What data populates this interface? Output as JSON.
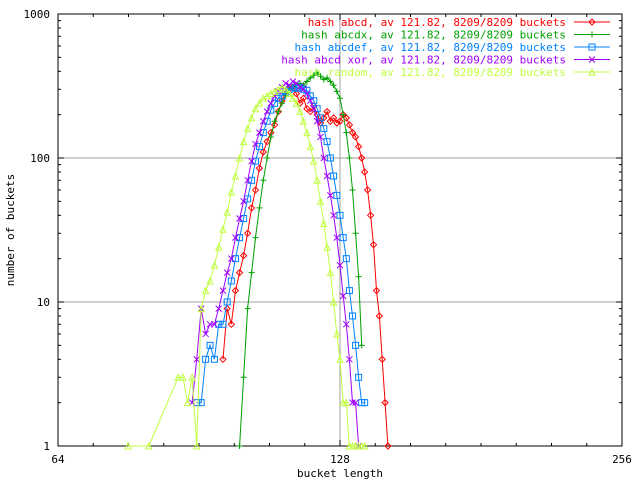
{
  "chart_data": {
    "type": "line",
    "title": "",
    "xlabel": "bucket length",
    "ylabel": "number of buckets",
    "xscale": "log2",
    "yscale": "log10",
    "xlim": [
      64,
      256
    ],
    "ylim": [
      1,
      1000
    ],
    "x_ticks": [
      64,
      128,
      256
    ],
    "x_tick_labels": [
      "64",
      "128",
      "256"
    ],
    "y_ticks": [
      1,
      10,
      100,
      1000
    ],
    "y_tick_labels": [
      "1",
      "10",
      "100",
      "1000"
    ],
    "grid": true,
    "legend_position": "top-right",
    "series": [
      {
        "name": "hash abcd, av 121.82, 8209/8209 buckets",
        "color": "#ff0000",
        "marker": "diamond",
        "points": [
          [
            96,
            4
          ],
          [
            97,
            9
          ],
          [
            98,
            7
          ],
          [
            99,
            12
          ],
          [
            100,
            16
          ],
          [
            101,
            21
          ],
          [
            102,
            30
          ],
          [
            103,
            45
          ],
          [
            104,
            60
          ],
          [
            105,
            85
          ],
          [
            106,
            110
          ],
          [
            107,
            130
          ],
          [
            108,
            150
          ],
          [
            109,
            170
          ],
          [
            110,
            210
          ],
          [
            111,
            250
          ],
          [
            112,
            280
          ],
          [
            113,
            300
          ],
          [
            114,
            310
          ],
          [
            115,
            280
          ],
          [
            116,
            240
          ],
          [
            117,
            260
          ],
          [
            118,
            220
          ],
          [
            119,
            210
          ],
          [
            120,
            230
          ],
          [
            121,
            200
          ],
          [
            122,
            175
          ],
          [
            123,
            190
          ],
          [
            124,
            210
          ],
          [
            125,
            180
          ],
          [
            126,
            190
          ],
          [
            127,
            175
          ],
          [
            128,
            180
          ],
          [
            129,
            200
          ],
          [
            130,
            190
          ],
          [
            131,
            170
          ],
          [
            132,
            150
          ],
          [
            133,
            140
          ],
          [
            134,
            120
          ],
          [
            135,
            100
          ],
          [
            136,
            80
          ],
          [
            137,
            60
          ],
          [
            138,
            40
          ],
          [
            139,
            25
          ],
          [
            140,
            12
          ],
          [
            141,
            8
          ],
          [
            142,
            4
          ],
          [
            143,
            2
          ],
          [
            144,
            1
          ]
        ]
      },
      {
        "name": "hash abcdx, av 121.82, 8209/8209 buckets",
        "color": "#00a000",
        "marker": "plus",
        "points": [
          [
            100,
            1
          ],
          [
            101,
            3
          ],
          [
            102,
            9
          ],
          [
            103,
            16
          ],
          [
            104,
            28
          ],
          [
            105,
            45
          ],
          [
            106,
            70
          ],
          [
            107,
            100
          ],
          [
            108,
            140
          ],
          [
            109,
            180
          ],
          [
            110,
            210
          ],
          [
            111,
            240
          ],
          [
            112,
            270
          ],
          [
            113,
            300
          ],
          [
            114,
            310
          ],
          [
            115,
            320
          ],
          [
            116,
            330
          ],
          [
            117,
            320
          ],
          [
            118,
            340
          ],
          [
            119,
            360
          ],
          [
            120,
            375
          ],
          [
            121,
            390
          ],
          [
            122,
            370
          ],
          [
            123,
            350
          ],
          [
            124,
            360
          ],
          [
            125,
            340
          ],
          [
            126,
            320
          ],
          [
            127,
            290
          ],
          [
            128,
            260
          ],
          [
            129,
            200
          ],
          [
            130,
            150
          ],
          [
            131,
            100
          ],
          [
            132,
            60
          ],
          [
            133,
            30
          ],
          [
            134,
            15
          ],
          [
            135,
            5
          ]
        ]
      },
      {
        "name": "hash abcdef, av 121.82, 8209/8209 buckets",
        "color": "#0080ff",
        "marker": "square",
        "points": [
          [
            90,
            2
          ],
          [
            91,
            2
          ],
          [
            92,
            4
          ],
          [
            93,
            5
          ],
          [
            94,
            4
          ],
          [
            95,
            7
          ],
          [
            96,
            7
          ],
          [
            97,
            10
          ],
          [
            98,
            14
          ],
          [
            99,
            20
          ],
          [
            100,
            28
          ],
          [
            101,
            38
          ],
          [
            102,
            52
          ],
          [
            103,
            70
          ],
          [
            104,
            95
          ],
          [
            105,
            120
          ],
          [
            106,
            150
          ],
          [
            107,
            180
          ],
          [
            108,
            215
          ],
          [
            109,
            240
          ],
          [
            110,
            260
          ],
          [
            111,
            270
          ],
          [
            112,
            290
          ],
          [
            113,
            300
          ],
          [
            114,
            310
          ],
          [
            115,
            305
          ],
          [
            116,
            310
          ],
          [
            117,
            300
          ],
          [
            118,
            295
          ],
          [
            119,
            270
          ],
          [
            120,
            250
          ],
          [
            121,
            220
          ],
          [
            122,
            190
          ],
          [
            123,
            160
          ],
          [
            124,
            130
          ],
          [
            125,
            100
          ],
          [
            126,
            75
          ],
          [
            127,
            55
          ],
          [
            128,
            40
          ],
          [
            129,
            28
          ],
          [
            130,
            20
          ],
          [
            131,
            12
          ],
          [
            132,
            8
          ],
          [
            133,
            5
          ],
          [
            134,
            3
          ],
          [
            135,
            2
          ],
          [
            136,
            2
          ]
        ]
      },
      {
        "name": "hash abcd xor, av 121.82, 8209/8209 buckets",
        "color": "#a000ff",
        "marker": "x",
        "points": [
          [
            89,
            2
          ],
          [
            90,
            4
          ],
          [
            91,
            9
          ],
          [
            92,
            6
          ],
          [
            93,
            7
          ],
          [
            94,
            7
          ],
          [
            95,
            9
          ],
          [
            96,
            12
          ],
          [
            97,
            16
          ],
          [
            98,
            20
          ],
          [
            99,
            28
          ],
          [
            100,
            38
          ],
          [
            101,
            50
          ],
          [
            102,
            70
          ],
          [
            103,
            95
          ],
          [
            104,
            125
          ],
          [
            105,
            150
          ],
          [
            106,
            180
          ],
          [
            107,
            210
          ],
          [
            108,
            240
          ],
          [
            109,
            270
          ],
          [
            110,
            290
          ],
          [
            111,
            310
          ],
          [
            112,
            330
          ],
          [
            113,
            320
          ],
          [
            114,
            340
          ],
          [
            115,
            330
          ],
          [
            116,
            310
          ],
          [
            117,
            300
          ],
          [
            118,
            280
          ],
          [
            119,
            250
          ],
          [
            120,
            220
          ],
          [
            121,
            180
          ],
          [
            122,
            140
          ],
          [
            123,
            100
          ],
          [
            124,
            75
          ],
          [
            125,
            55
          ],
          [
            126,
            40
          ],
          [
            127,
            28
          ],
          [
            128,
            18
          ],
          [
            129,
            11
          ],
          [
            130,
            7
          ],
          [
            131,
            4
          ],
          [
            132,
            2
          ],
          [
            133,
            2
          ],
          [
            134,
            1
          ]
        ]
      },
      {
        "name": "hash random, av 121.82, 8209/8209 buckets",
        "color": "#c0ff40",
        "marker": "triangle",
        "points": [
          [
            76,
            1
          ],
          [
            80,
            1
          ],
          [
            86,
            3
          ],
          [
            87,
            3
          ],
          [
            88,
            2
          ],
          [
            89,
            3
          ],
          [
            90,
            1
          ],
          [
            91,
            9
          ],
          [
            92,
            12
          ],
          [
            93,
            14
          ],
          [
            94,
            18
          ],
          [
            95,
            24
          ],
          [
            96,
            32
          ],
          [
            97,
            42
          ],
          [
            98,
            58
          ],
          [
            99,
            75
          ],
          [
            100,
            100
          ],
          [
            101,
            130
          ],
          [
            102,
            160
          ],
          [
            103,
            190
          ],
          [
            104,
            220
          ],
          [
            105,
            240
          ],
          [
            106,
            260
          ],
          [
            107,
            270
          ],
          [
            108,
            280
          ],
          [
            109,
            290
          ],
          [
            110,
            300
          ],
          [
            111,
            310
          ],
          [
            112,
            300
          ],
          [
            113,
            280
          ],
          [
            114,
            260
          ],
          [
            115,
            240
          ],
          [
            116,
            210
          ],
          [
            117,
            180
          ],
          [
            118,
            150
          ],
          [
            119,
            120
          ],
          [
            120,
            95
          ],
          [
            121,
            70
          ],
          [
            122,
            50
          ],
          [
            123,
            35
          ],
          [
            124,
            24
          ],
          [
            125,
            16
          ],
          [
            126,
            10
          ],
          [
            127,
            6
          ],
          [
            128,
            4
          ],
          [
            129,
            2
          ],
          [
            130,
            2
          ],
          [
            131,
            1
          ],
          [
            132,
            1
          ],
          [
            133,
            1
          ],
          [
            134,
            1
          ],
          [
            135,
            1
          ],
          [
            136,
            1
          ]
        ]
      }
    ]
  }
}
